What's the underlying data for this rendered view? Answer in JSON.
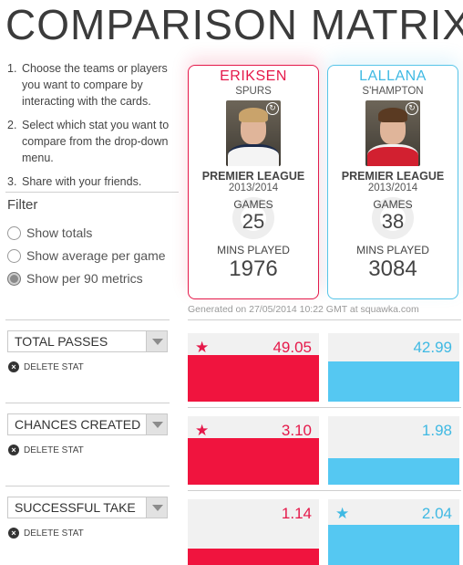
{
  "title": "COMPARISON MATRIX",
  "instructions": [
    {
      "num": "1.",
      "text": "Choose the teams or players you want to compare by interacting with the cards."
    },
    {
      "num": "2.",
      "text": "Select which stat you want to compare from the drop-down menu."
    },
    {
      "num": "3.",
      "text": "Share with your friends."
    }
  ],
  "filter": {
    "title": "Filter",
    "options": [
      {
        "label": "Show totals",
        "selected": false
      },
      {
        "label": "Show average per game",
        "selected": false
      },
      {
        "label": "Show per 90 metrics",
        "selected": true
      }
    ]
  },
  "players": [
    {
      "name": "ERIKSEN",
      "team": "SPURS",
      "league": "PREMIER LEAGUE",
      "season": "2013/2014",
      "games_label": "GAMES",
      "games": "25",
      "mins_label": "MINS PLAYED",
      "mins": "1976",
      "color": "#e5194a",
      "swap_icon": "swap-icon"
    },
    {
      "name": "LALLANA",
      "team": "S'HAMPTON",
      "league": "PREMIER LEAGUE",
      "season": "2013/2014",
      "games_label": "GAMES",
      "games": "38",
      "mins_label": "MINS PLAYED",
      "mins": "3084",
      "color": "#3fb9e3",
      "swap_icon": "swap-icon"
    }
  ],
  "generated": "Generated on 27/05/2014 10:22 GMT at squawka.com",
  "delete_label": "DELETE STAT",
  "stats": [
    {
      "label": "TOTAL PASSES",
      "values": [
        "49.05",
        "42.99"
      ],
      "fill": [
        0.68,
        0.58
      ],
      "winner": 0
    },
    {
      "label": "CHANCES CREATED",
      "values": [
        "3.10",
        "1.98"
      ],
      "fill": [
        0.68,
        0.38
      ],
      "winner": 0
    },
    {
      "label": "SUCCESSFUL TAKE",
      "values": [
        "1.14",
        "2.04"
      ],
      "fill": [
        0.28,
        0.62
      ],
      "winner": 1
    }
  ]
}
